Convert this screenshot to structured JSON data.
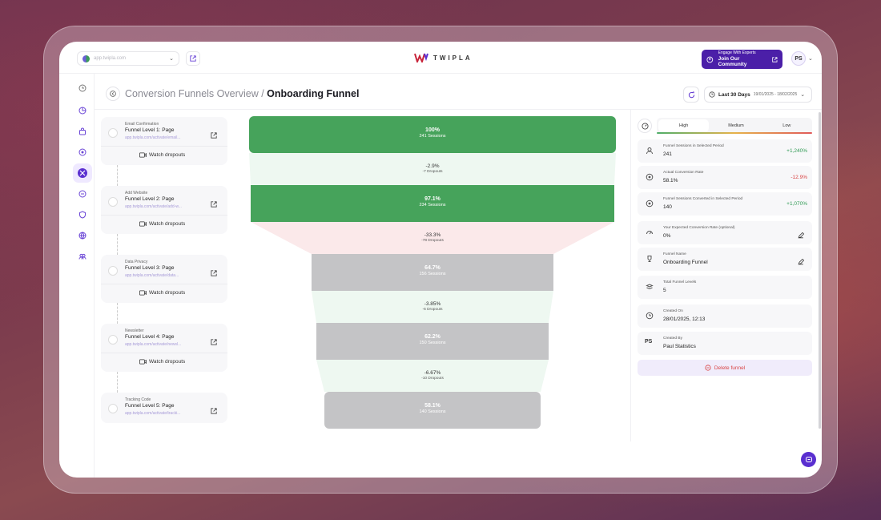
{
  "colors": {
    "brand_purple": "#4b1fa8",
    "funnel_green": "#46a35b",
    "funnel_gray": "#c4c4c6",
    "positive": "#2f9a53",
    "negative": "#d94343"
  },
  "topbar": {
    "site_url": "app.twipla.com",
    "logo_text": "TWIPLA",
    "engage_small": "Engage With Experts",
    "engage_big": "Join Our Community",
    "avatar_initials": "PS"
  },
  "header": {
    "breadcrumb_parent": "Conversion Funnels Overview",
    "breadcrumb_separator": " / ",
    "breadcrumb_current": "Onboarding Funnel",
    "date_label": "Last 30 Days",
    "date_range": "19/01/2025 - 18/02/2025"
  },
  "rail": [
    "clock-icon",
    "pie-icon",
    "bag-icon",
    "target-icon",
    "funnel-icon",
    "chat-icon",
    "shield-icon",
    "globe-icon",
    "users-icon"
  ],
  "steps": [
    {
      "category": "Email Confirmation",
      "title": "Funnel Level 1: Page",
      "url": "app.twipla.com/activate/email...",
      "watch": "Watch dropouts"
    },
    {
      "category": "Add Website",
      "title": "Funnel Level 2: Page",
      "url": "app.twipla.com/activate/add-w...",
      "watch": "Watch dropouts"
    },
    {
      "category": "Data Privacy",
      "title": "Funnel Level 3: Page",
      "url": "app.twipla.com/activate/data...",
      "watch": "Watch dropouts"
    },
    {
      "category": "Newsletter",
      "title": "Funnel Level 4: Page",
      "url": "app.twipla.com/activate/newsl...",
      "watch": "Watch dropouts"
    },
    {
      "category": "Tracking Code",
      "title": "Funnel Level 5: Page",
      "url": "app.twipla.com/activate/tracki...",
      "watch": ""
    }
  ],
  "funnel": {
    "levels": [
      {
        "percent": "100%",
        "sessions": "241 Sessions",
        "share": 1.0,
        "color": "green"
      },
      {
        "percent": "97.1%",
        "sessions": "234 Sessions",
        "share": 0.971,
        "color": "green"
      },
      {
        "percent": "64.7%",
        "sessions": "156 Sessions",
        "share": 0.647,
        "color": "gray"
      },
      {
        "percent": "62.2%",
        "sessions": "150 Sessions",
        "share": 0.622,
        "color": "gray"
      },
      {
        "percent": "58.1%",
        "sessions": "140 Sessions",
        "share": 0.581,
        "color": "gray"
      }
    ],
    "dropouts": [
      {
        "percent": "-2.9%",
        "count": "-7 Dropouts",
        "tone": "green"
      },
      {
        "percent": "-33.3%",
        "count": "-78 Dropouts",
        "tone": "red"
      },
      {
        "percent": "-3.85%",
        "count": "-6 Dropouts",
        "tone": "green"
      },
      {
        "percent": "-6.67%",
        "count": "-10 Dropouts",
        "tone": "green"
      }
    ]
  },
  "panel": {
    "segments": [
      "High",
      "Medium",
      "Low"
    ],
    "rows": [
      {
        "icon": "person-icon",
        "label": "Funnel Sessions in Selected Period",
        "value": "241",
        "delta": "+1,240%",
        "delta_tone": "pos"
      },
      {
        "icon": "target-icon",
        "label": "Actual Conversion Rate",
        "value": "58.1%",
        "delta": "-12.9%",
        "delta_tone": "neg"
      },
      {
        "icon": "target-icon",
        "label": "Funnel Sessions Converted in Selected Period",
        "value": "140",
        "delta": "+1,070%",
        "delta_tone": "pos"
      },
      {
        "icon": "gauge-icon",
        "label": "Your Expected Conversion Rate (optional)",
        "value": "0%",
        "edit": true
      },
      {
        "icon": "trophy-icon",
        "label": "Funnel Name",
        "value": "Onboarding Funnel",
        "edit": true
      },
      {
        "icon": "layers-icon",
        "label": "Total Funnel Levels",
        "value": "5"
      },
      {
        "icon": "clock-icon",
        "label": "Created On",
        "value": "28/01/2025, 12:13"
      },
      {
        "icon": "ps-badge",
        "label": "Created By",
        "value": "Paul Statistics"
      }
    ],
    "delete_label": "Delete funnel"
  }
}
